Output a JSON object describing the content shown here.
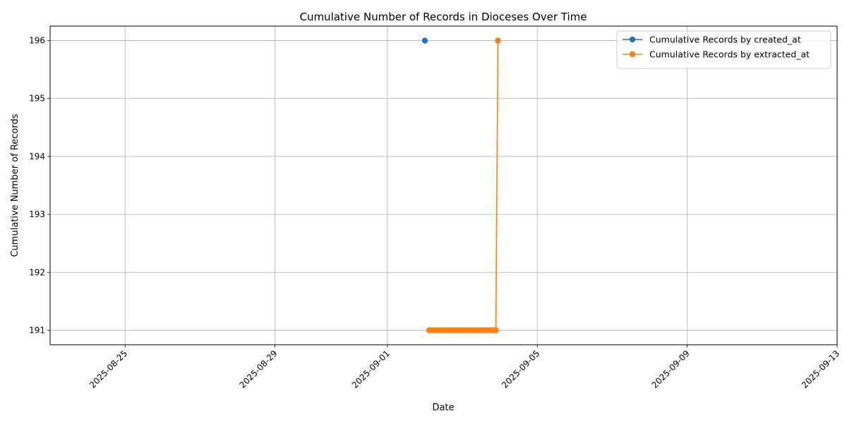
{
  "chart_data": {
    "type": "line",
    "title": "Cumulative Number of Records in Dioceses Over Time",
    "xlabel": "Date",
    "ylabel": "Cumulative Number of Records",
    "x_ticks": [
      "2025-08-25",
      "2025-08-29",
      "2025-09-01",
      "2025-09-05",
      "2025-09-09",
      "2025-09-13"
    ],
    "y_ticks": [
      "191",
      "192",
      "193",
      "194",
      "195",
      "196"
    ],
    "xlim": [
      "2025-08-23",
      "2025-09-13"
    ],
    "ylim": [
      190.75,
      196.25
    ],
    "grid": true,
    "legend_position": "top-right",
    "series": [
      {
        "name": "Cumulative Records by created_at",
        "color": "#1f77b4",
        "points": [
          {
            "x": "2025-09-02 00:00",
            "y": 196
          }
        ]
      },
      {
        "name": "Cumulative Records by extracted_at",
        "color": "#ff7f0e",
        "points": [
          {
            "x": "2025-09-02 02:45",
            "y": 191
          },
          {
            "x": "2025-09-02 04:00",
            "y": 191
          },
          {
            "x": "2025-09-02 05:30",
            "y": 191
          },
          {
            "x": "2025-09-02 07:00",
            "y": 191
          },
          {
            "x": "2025-09-02 08:30",
            "y": 191
          },
          {
            "x": "2025-09-02 10:00",
            "y": 191
          },
          {
            "x": "2025-09-02 11:30",
            "y": 191
          },
          {
            "x": "2025-09-02 13:00",
            "y": 191
          },
          {
            "x": "2025-09-02 14:30",
            "y": 191
          },
          {
            "x": "2025-09-02 16:00",
            "y": 191
          },
          {
            "x": "2025-09-02 17:30",
            "y": 191
          },
          {
            "x": "2025-09-02 19:00",
            "y": 191
          },
          {
            "x": "2025-09-02 20:30",
            "y": 191
          },
          {
            "x": "2025-09-02 22:00",
            "y": 191
          },
          {
            "x": "2025-09-02 23:30",
            "y": 191
          },
          {
            "x": "2025-09-03 01:00",
            "y": 191
          },
          {
            "x": "2025-09-03 02:30",
            "y": 191
          },
          {
            "x": "2025-09-03 04:00",
            "y": 191
          },
          {
            "x": "2025-09-03 05:30",
            "y": 191
          },
          {
            "x": "2025-09-03 07:00",
            "y": 191
          },
          {
            "x": "2025-09-03 08:30",
            "y": 191
          },
          {
            "x": "2025-09-03 10:00",
            "y": 191
          },
          {
            "x": "2025-09-03 11:30",
            "y": 191
          },
          {
            "x": "2025-09-03 13:00",
            "y": 191
          },
          {
            "x": "2025-09-03 14:30",
            "y": 191
          },
          {
            "x": "2025-09-03 16:00",
            "y": 191
          },
          {
            "x": "2025-09-03 17:30",
            "y": 191
          },
          {
            "x": "2025-09-03 19:00",
            "y": 191
          },
          {
            "x": "2025-09-03 20:30",
            "y": 191
          },
          {
            "x": "2025-09-03 21:30",
            "y": 191
          },
          {
            "x": "2025-09-03 22:45",
            "y": 196
          }
        ]
      }
    ]
  }
}
